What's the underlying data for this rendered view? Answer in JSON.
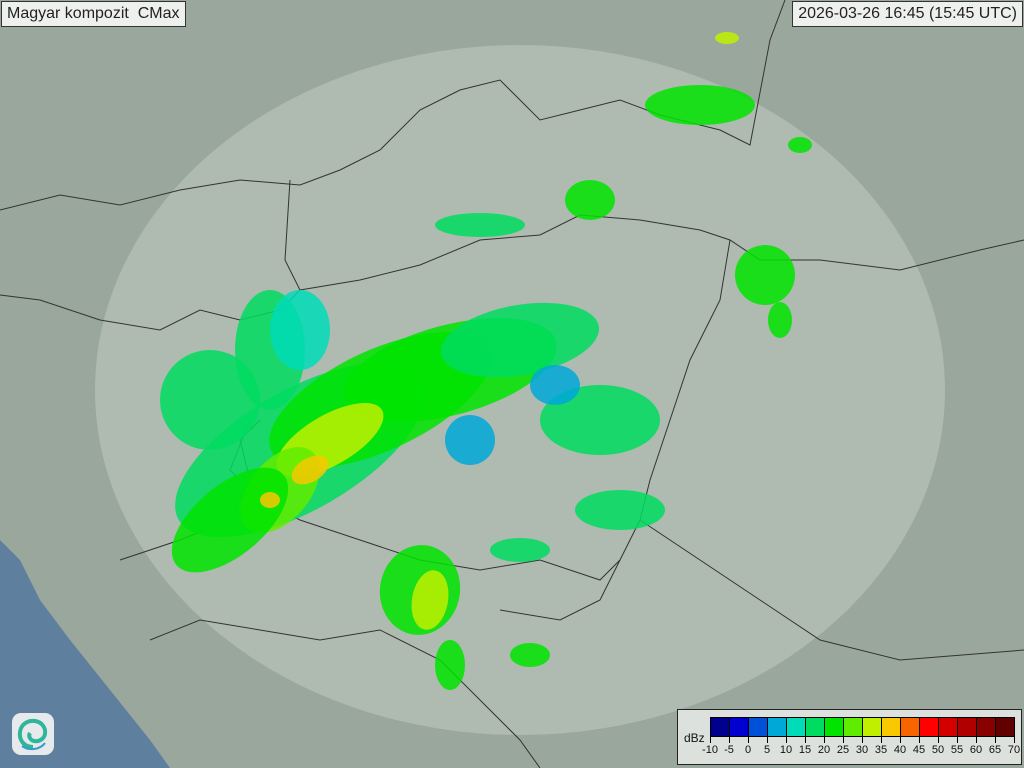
{
  "header": {
    "title": "Magyar kompozit  CMax",
    "timestamp": "2026-03-26 16:45 (15:45 UTC)"
  },
  "logo": {
    "icon": "swirl-logo-icon"
  },
  "legend": {
    "unit": "dBz",
    "labels": [
      "-10",
      "-5",
      "0",
      "5",
      "10",
      "15",
      "20",
      "25",
      "30",
      "35",
      "40",
      "45",
      "50",
      "55",
      "60",
      "65",
      "70"
    ],
    "colors": [
      "#00008f",
      "#0000d0",
      "#0050d8",
      "#00a8d8",
      "#00dcb8",
      "#00dc60",
      "#00e400",
      "#60ec00",
      "#c0f000",
      "#f8c800",
      "#f86400",
      "#ff0000",
      "#d40000",
      "#b00000",
      "#880000",
      "#600000"
    ]
  },
  "map": {
    "land_color": "#9aa79c",
    "sea_color": "#5f7f9e",
    "coverage_color": "#c9d3cb",
    "border_color": "#333333"
  }
}
